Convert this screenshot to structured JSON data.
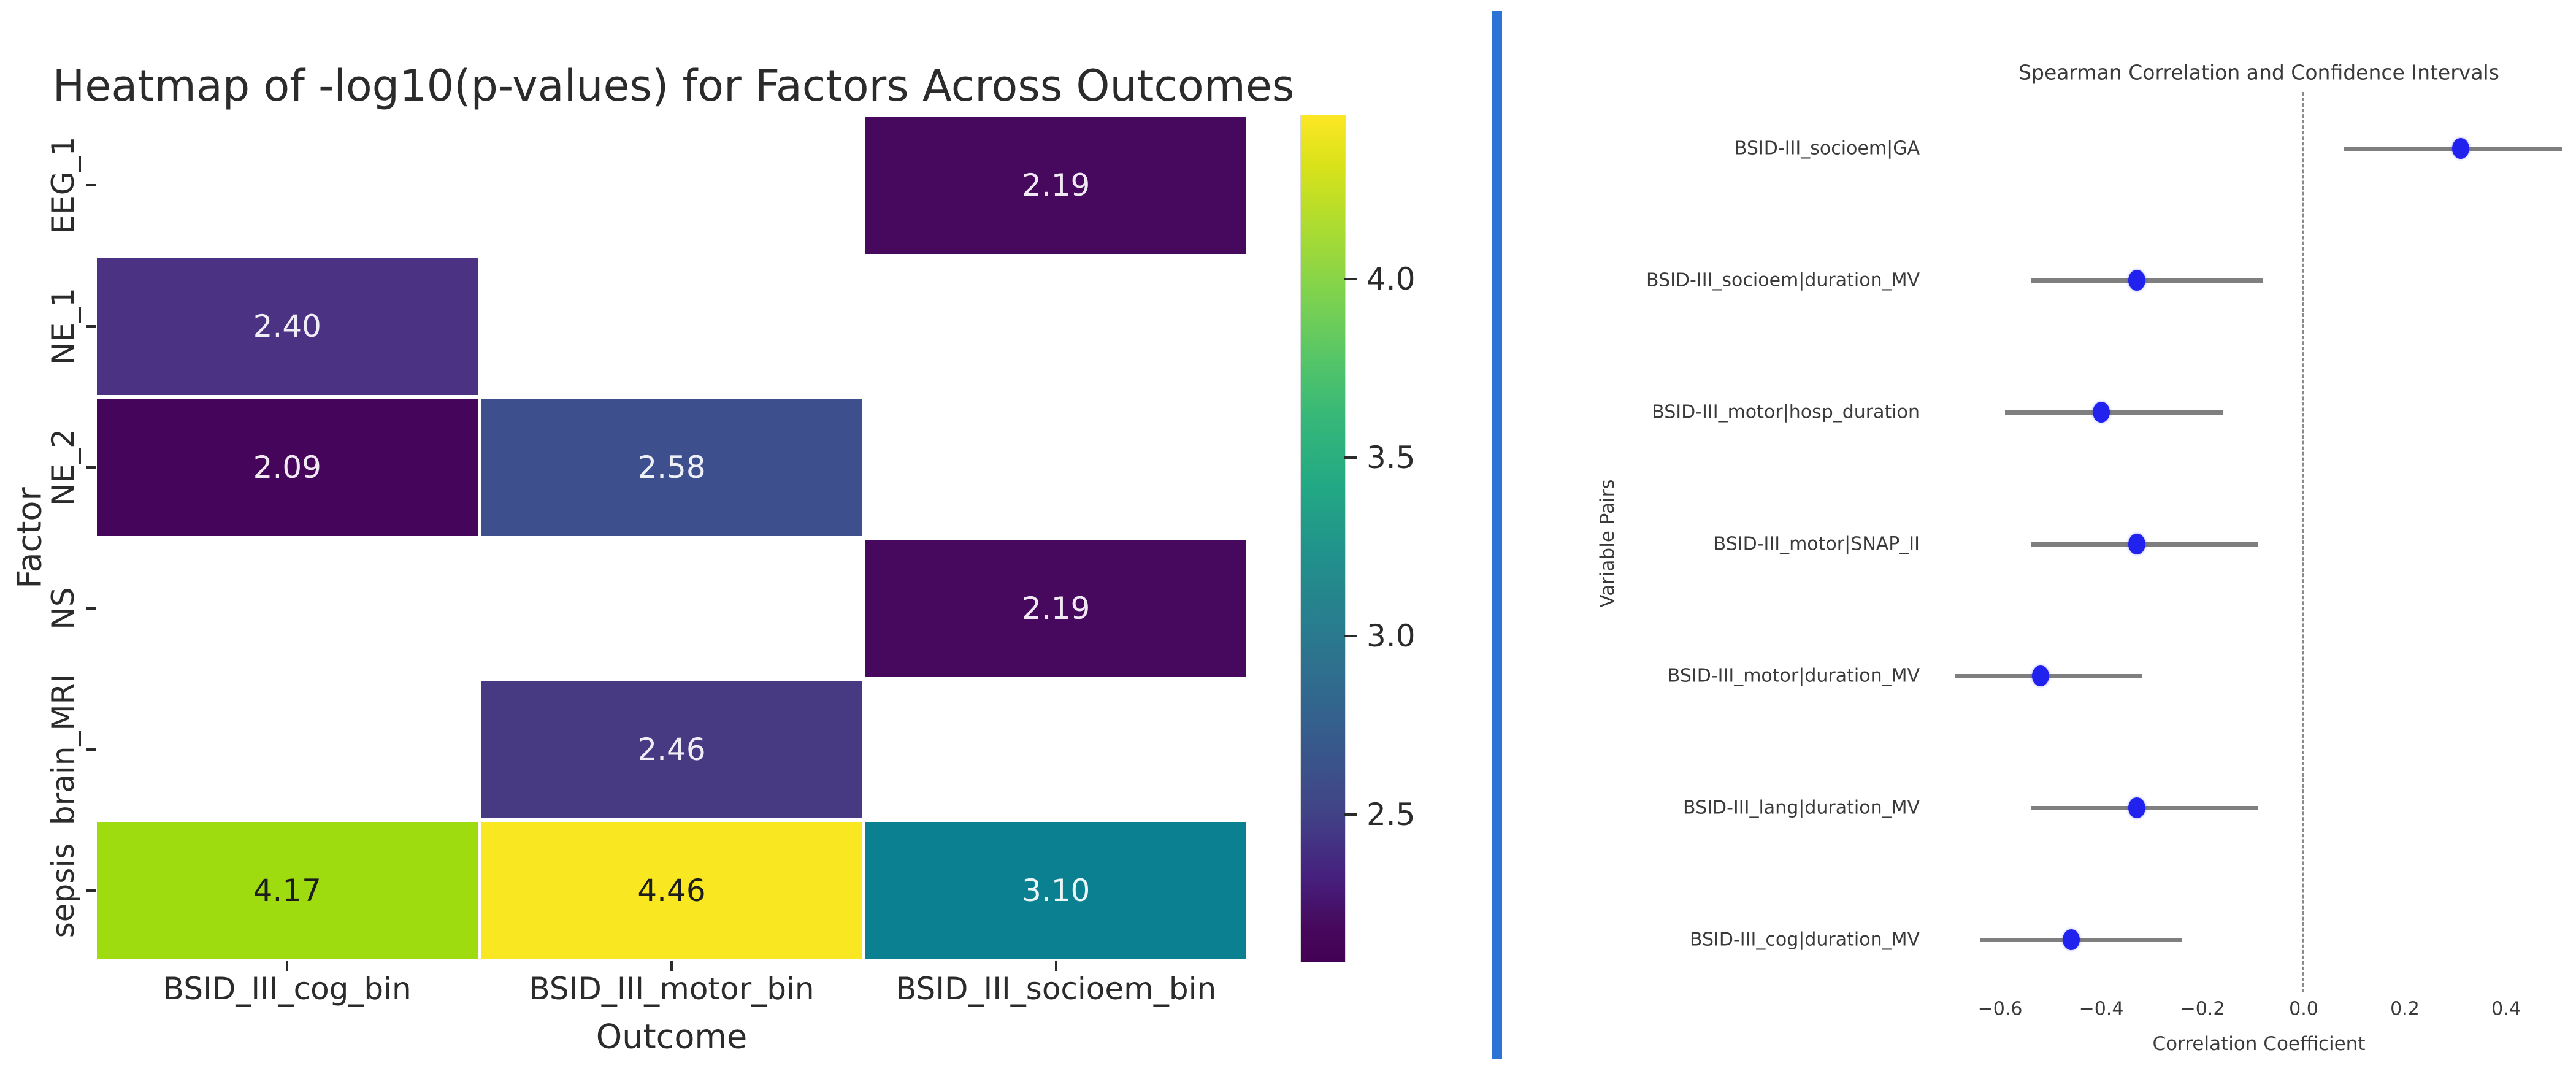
{
  "figure": {
    "background": "#ffffff",
    "divider_color": "#2b73d4",
    "text_color_dark": "#2b2b2b",
    "text_color_medium": "#3a3a3a"
  },
  "chart_data": [
    {
      "type": "heatmap",
      "title": "Heatmap of -log10(p-values) for Factors Across Outcomes",
      "xlabel": "Outcome",
      "ylabel": "Factor",
      "columns": [
        "BSID_III_cog_bin",
        "BSID_III_motor_bin",
        "BSID_III_socioem_bin"
      ],
      "rows": [
        "EEG_1",
        "NE_1",
        "NE_2",
        "NS",
        "brain_MRI",
        "sepsis"
      ],
      "missing_cells_blank": true,
      "cells": [
        {
          "row": 0,
          "col": 2,
          "value": 2.19,
          "bg": "#46095d",
          "fg": "#f0e9f3"
        },
        {
          "row": 1,
          "col": 0,
          "value": 2.4,
          "bg": "#4b3283",
          "fg": "#efedf5"
        },
        {
          "row": 2,
          "col": 0,
          "value": 2.09,
          "bg": "#45055a",
          "fg": "#f0e9f3"
        },
        {
          "row": 2,
          "col": 1,
          "value": 2.58,
          "bg": "#3e4f8d",
          "fg": "#eef0f7"
        },
        {
          "row": 3,
          "col": 2,
          "value": 2.19,
          "bg": "#46095d",
          "fg": "#f0e9f3"
        },
        {
          "row": 4,
          "col": 1,
          "value": 2.46,
          "bg": "#473a83",
          "fg": "#efedf5"
        },
        {
          "row": 5,
          "col": 0,
          "value": 4.17,
          "bg": "#9edc10",
          "fg": "#1d1d1d"
        },
        {
          "row": 5,
          "col": 1,
          "value": 4.46,
          "bg": "#f9e721",
          "fg": "#1d1d1d"
        },
        {
          "row": 5,
          "col": 2,
          "value": 3.1,
          "bg": "#0b8090",
          "fg": "#ebf5f6"
        }
      ],
      "colorbar": {
        "vmin": 2.09,
        "vmax": 4.46,
        "ticks": [
          4.0,
          3.5,
          3.0,
          2.5
        ],
        "colormap": "viridis"
      }
    },
    {
      "type": "scatter",
      "subtype": "forest-plot",
      "title": "Spearman Correlation and Confidence Intervals",
      "xlabel": "Correlation Coefficient",
      "ylabel": "Variable Pairs",
      "xlim": [
        -0.7,
        0.52
      ],
      "x_ticks": [
        -0.6,
        -0.4,
        -0.2,
        0.0,
        0.2,
        0.4
      ],
      "zero_line": 0.0,
      "marker_color": "#2222ee",
      "ci_color": "#7f7f7f",
      "points": [
        {
          "label": "BSID-III_socioem|GA",
          "value": 0.31,
          "ci_low": 0.08,
          "ci_high": 0.51
        },
        {
          "label": "BSID-III_socioem|duration_MV",
          "value": -0.33,
          "ci_low": -0.54,
          "ci_high": -0.08
        },
        {
          "label": "BSID-III_motor|hosp_duration",
          "value": -0.4,
          "ci_low": -0.59,
          "ci_high": -0.16
        },
        {
          "label": "BSID-III_motor|SNAP_II",
          "value": -0.33,
          "ci_low": -0.54,
          "ci_high": -0.09
        },
        {
          "label": "BSID-III_motor|duration_MV",
          "value": -0.52,
          "ci_low": -0.69,
          "ci_high": -0.32
        },
        {
          "label": "BSID-III_lang|duration_MV",
          "value": -0.33,
          "ci_low": -0.54,
          "ci_high": -0.09
        },
        {
          "label": "BSID-III_cog|duration_MV",
          "value": -0.46,
          "ci_low": -0.64,
          "ci_high": -0.24
        }
      ]
    }
  ]
}
